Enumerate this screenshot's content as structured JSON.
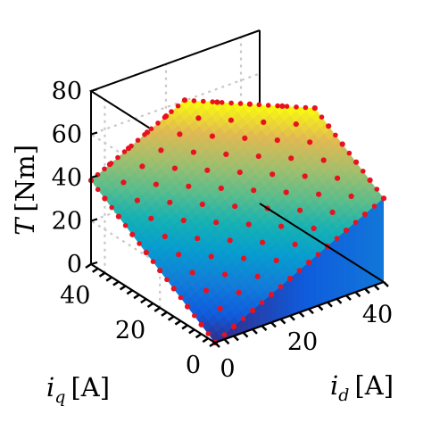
{
  "chart_data": {
    "type": "surface",
    "title": "",
    "xlabel": {
      "symbol": "i",
      "subscript": "d",
      "unit": "[A]"
    },
    "ylabel": {
      "symbol": "i",
      "subscript": "q",
      "unit": "[A]"
    },
    "zlabel": {
      "symbol": "T",
      "unit": "[Nm]"
    },
    "xlim": [
      0,
      45
    ],
    "ylim": [
      0,
      45
    ],
    "zlim": [
      0,
      80
    ],
    "x_ticks": [
      0,
      20,
      40
    ],
    "y_ticks": [
      0,
      20,
      40
    ],
    "z_ticks": [
      0,
      20,
      40,
      60,
      80
    ],
    "grid": true,
    "colormap": "parula",
    "colors": {
      "markers": "#e8121f",
      "grid": "#c8c8c8",
      "axes": "#000000"
    },
    "surface_model": "T = 0.86*(i_d + i_q), defined where i_d + i_q <= 70 A, i_d <= 45 A, i_q <= 45 A",
    "markers": {
      "series_name": "",
      "i_d_values": [
        0,
        5,
        10,
        15,
        20,
        25,
        30,
        35,
        40,
        45
      ],
      "i_q_values": [
        0,
        5,
        10,
        15,
        20,
        25,
        30,
        35,
        40,
        45
      ],
      "max_current_sum": 70,
      "torque_per_ampere": 0.86
    }
  }
}
